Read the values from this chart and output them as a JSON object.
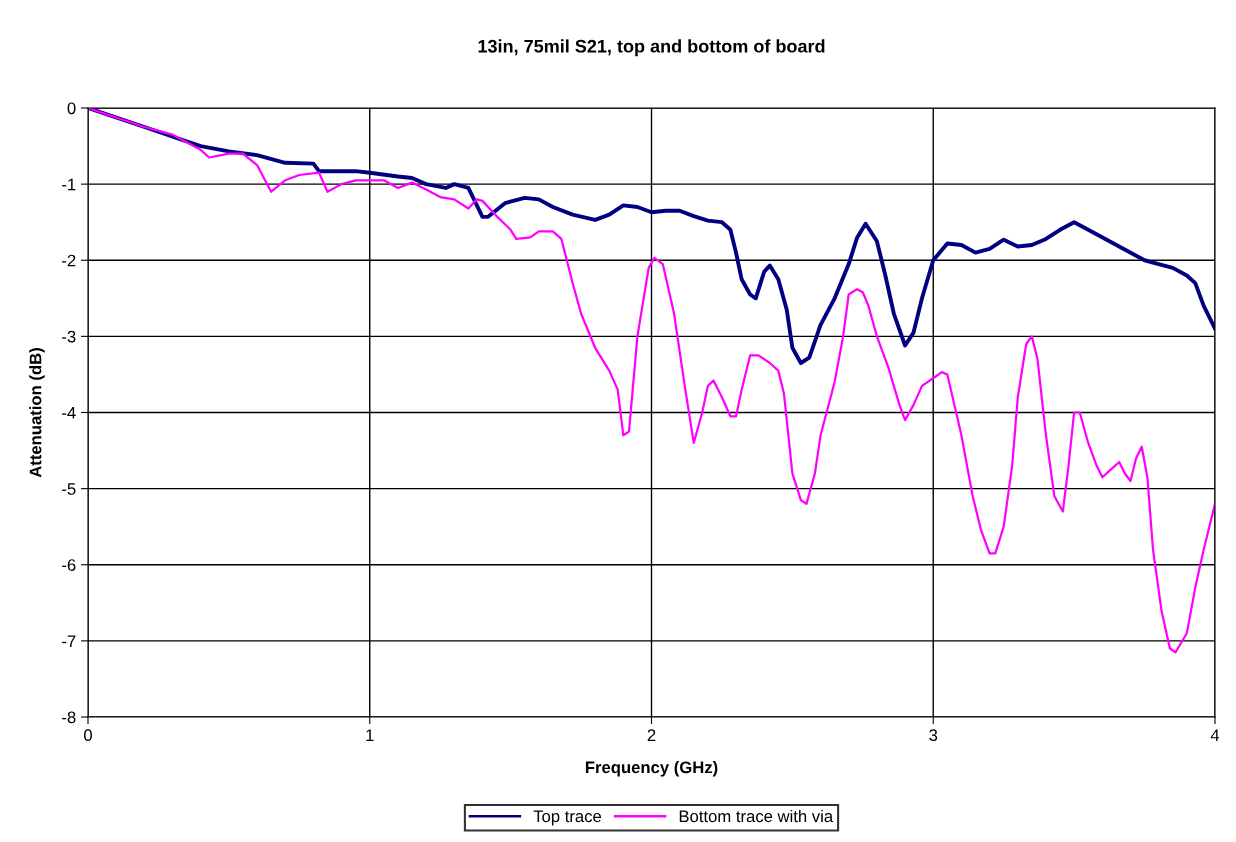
{
  "chart_data": {
    "type": "line",
    "title": "13in, 75mil S21, top and bottom of board",
    "xlabel": "Frequency (GHz)",
    "ylabel": "Attenuation (dB)",
    "xlim": [
      0,
      4
    ],
    "xticks": [
      0,
      1,
      2,
      3,
      4
    ],
    "ylim": [
      -8,
      0
    ],
    "yticks": [
      -8,
      -7,
      -6,
      -5,
      -4,
      -3,
      -2,
      -1,
      0
    ],
    "grid": true,
    "legend": "bottom",
    "marker": "none",
    "line_style": "solid",
    "series": [
      {
        "name": "Top trace",
        "color": "#000080",
        "x": [
          0,
          0.2,
          0.4,
          0.5,
          0.6,
          0.7,
          0.8,
          0.82,
          0.95,
          1.0,
          1.1,
          1.15,
          1.2,
          1.27,
          1.3,
          1.35,
          1.4,
          1.42,
          1.48,
          1.55,
          1.6,
          1.65,
          1.72,
          1.8,
          1.85,
          1.9,
          1.95,
          2.0,
          2.05,
          2.1,
          2.15,
          2.2,
          2.25,
          2.28,
          2.3,
          2.32,
          2.35,
          2.37,
          2.4,
          2.42,
          2.45,
          2.48,
          2.5,
          2.53,
          2.56,
          2.6,
          2.65,
          2.7,
          2.73,
          2.76,
          2.8,
          2.83,
          2.86,
          2.9,
          2.93,
          2.96,
          3.0,
          3.05,
          3.1,
          3.15,
          3.2,
          3.25,
          3.3,
          3.35,
          3.4,
          3.45,
          3.5,
          3.55,
          3.65,
          3.75,
          3.8,
          3.85,
          3.9,
          3.93,
          3.96,
          4.0
        ],
        "values": [
          0,
          -0.25,
          -0.5,
          -0.57,
          -0.62,
          -0.72,
          -0.73,
          -0.83,
          -0.83,
          -0.85,
          -0.9,
          -0.92,
          -1.0,
          -1.05,
          -1.0,
          -1.05,
          -1.43,
          -1.43,
          -1.25,
          -1.18,
          -1.2,
          -1.3,
          -1.4,
          -1.47,
          -1.4,
          -1.28,
          -1.3,
          -1.37,
          -1.35,
          -1.35,
          -1.42,
          -1.48,
          -1.5,
          -1.6,
          -1.9,
          -2.25,
          -2.45,
          -2.5,
          -2.15,
          -2.07,
          -2.25,
          -2.65,
          -3.15,
          -3.35,
          -3.28,
          -2.85,
          -2.5,
          -2.05,
          -1.7,
          -1.52,
          -1.75,
          -2.2,
          -2.7,
          -3.12,
          -2.95,
          -2.5,
          -2.0,
          -1.78,
          -1.8,
          -1.9,
          -1.85,
          -1.73,
          -1.82,
          -1.8,
          -1.72,
          -1.6,
          -1.5,
          -1.6,
          -1.8,
          -2.0,
          -2.05,
          -2.1,
          -2.2,
          -2.3,
          -2.6,
          -2.9
        ]
      },
      {
        "name": "Bottom trace with via",
        "color": "#ff00ff",
        "x": [
          0,
          0.2,
          0.3,
          0.35,
          0.4,
          0.43,
          0.5,
          0.55,
          0.6,
          0.65,
          0.7,
          0.75,
          0.82,
          0.85,
          0.9,
          0.95,
          1.0,
          1.05,
          1.1,
          1.15,
          1.2,
          1.25,
          1.3,
          1.35,
          1.38,
          1.4,
          1.45,
          1.5,
          1.52,
          1.57,
          1.6,
          1.65,
          1.68,
          1.72,
          1.75,
          1.8,
          1.85,
          1.88,
          1.9,
          1.92,
          1.95,
          1.99,
          2.01,
          2.04,
          2.08,
          2.12,
          2.15,
          2.18,
          2.2,
          2.22,
          2.25,
          2.28,
          2.3,
          2.32,
          2.35,
          2.38,
          2.42,
          2.45,
          2.47,
          2.5,
          2.53,
          2.55,
          2.58,
          2.6,
          2.65,
          2.68,
          2.7,
          2.73,
          2.75,
          2.77,
          2.8,
          2.84,
          2.88,
          2.9,
          2.93,
          2.96,
          3.0,
          3.03,
          3.05,
          3.1,
          3.14,
          3.17,
          3.2,
          3.22,
          3.25,
          3.28,
          3.3,
          3.33,
          3.35,
          3.37,
          3.4,
          3.43,
          3.46,
          3.48,
          3.5,
          3.52,
          3.55,
          3.58,
          3.6,
          3.63,
          3.66,
          3.68,
          3.7,
          3.72,
          3.74,
          3.76,
          3.78,
          3.81,
          3.84,
          3.86,
          3.9,
          3.93,
          3.96,
          4.0
        ],
        "values": [
          0,
          -0.25,
          -0.35,
          -0.45,
          -0.55,
          -0.65,
          -0.6,
          -0.6,
          -0.75,
          -1.1,
          -0.95,
          -0.88,
          -0.85,
          -1.1,
          -1.0,
          -0.95,
          -0.95,
          -0.95,
          -1.05,
          -0.98,
          -1.07,
          -1.17,
          -1.2,
          -1.32,
          -1.2,
          -1.22,
          -1.42,
          -1.6,
          -1.72,
          -1.7,
          -1.62,
          -1.62,
          -1.72,
          -2.3,
          -2.7,
          -3.15,
          -3.45,
          -3.7,
          -4.3,
          -4.25,
          -3.0,
          -2.1,
          -1.97,
          -2.05,
          -2.7,
          -3.7,
          -4.4,
          -4.0,
          -3.65,
          -3.58,
          -3.8,
          -4.05,
          -4.05,
          -3.7,
          -3.25,
          -3.25,
          -3.35,
          -3.45,
          -3.75,
          -4.8,
          -5.15,
          -5.2,
          -4.8,
          -4.3,
          -3.6,
          -3.0,
          -2.45,
          -2.38,
          -2.42,
          -2.6,
          -3.0,
          -3.4,
          -3.9,
          -4.1,
          -3.9,
          -3.65,
          -3.55,
          -3.47,
          -3.5,
          -4.3,
          -5.1,
          -5.55,
          -5.85,
          -5.85,
          -5.5,
          -4.7,
          -3.8,
          -3.1,
          -3.0,
          -3.3,
          -4.3,
          -5.1,
          -5.3,
          -4.7,
          -4.0,
          -4.0,
          -4.4,
          -4.7,
          -4.85,
          -4.75,
          -4.65,
          -4.8,
          -4.9,
          -4.6,
          -4.45,
          -4.85,
          -5.8,
          -6.6,
          -7.1,
          -7.15,
          -6.9,
          -6.3,
          -5.8,
          -5.2
        ]
      }
    ]
  }
}
